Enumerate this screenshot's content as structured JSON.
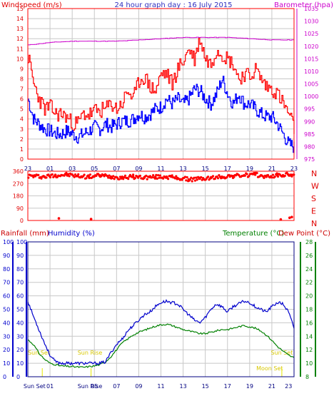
{
  "chart_data": [
    {
      "type": "line",
      "title": "24 hour graph day : 16 July 2015",
      "left_axis_label": "Windspeed (m/s)",
      "right_axis_label": "Barometer (hpa)",
      "x_ticks": [
        "23",
        "01",
        "03",
        "05",
        "07",
        "09",
        "11",
        "13",
        "15",
        "17",
        "19",
        "21",
        "23"
      ],
      "x_range_hours": [
        0,
        24
      ],
      "left_ylim": [
        0,
        15
      ],
      "left_yticks": [
        0,
        1,
        2,
        3,
        4,
        5,
        6,
        7,
        8,
        9,
        10,
        11,
        12,
        13,
        14,
        15
      ],
      "right_ylim": [
        975,
        1035
      ],
      "right_yticks": [
        975,
        980,
        985,
        990,
        995,
        1000,
        1005,
        1010,
        1015,
        1020,
        1025,
        1030,
        1035
      ],
      "grid": true,
      "colors": {
        "gust": "#ff0000",
        "average": "#0000ff",
        "barometer": "#cc00cc",
        "frame": "#ff0000",
        "grid": "#c8c8c8"
      },
      "series": [
        {
          "role": "gust",
          "axis": "left",
          "x": [
            0,
            0.5,
            1,
            1.5,
            2,
            2.5,
            3,
            3.5,
            4,
            4.5,
            5,
            5.5,
            6,
            6.5,
            7,
            7.5,
            8,
            8.5,
            9,
            9.5,
            10,
            10.5,
            11,
            11.5,
            12,
            12.5,
            13,
            13.5,
            14,
            14.5,
            15,
            15.5,
            16,
            16.5,
            17,
            17.5,
            18,
            18.5,
            19,
            19.5,
            20,
            20.5,
            21,
            21.5,
            22,
            22.5,
            23,
            23.5,
            24
          ],
          "values": [
            10.2,
            7.5,
            6,
            5,
            5.2,
            4.5,
            4.5,
            4.2,
            3.5,
            3.6,
            4.5,
            4.4,
            4.8,
            4.8,
            5,
            5.5,
            5,
            5.6,
            6.8,
            6,
            7.8,
            8.2,
            7.2,
            6.8,
            8.5,
            8.5,
            7.5,
            9,
            9.8,
            11,
            10,
            12,
            10,
            9.5,
            11,
            10.5,
            10,
            9.5,
            8,
            8.5,
            8.2,
            9,
            8,
            7.2,
            7,
            6.5,
            5.5,
            4.5,
            3
          ]
        },
        {
          "role": "average",
          "axis": "left",
          "x": [
            0,
            0.5,
            1,
            1.5,
            2,
            2.5,
            3,
            3.5,
            4,
            4.5,
            5,
            5.5,
            6,
            6.5,
            7,
            7.5,
            8,
            8.5,
            9,
            9.5,
            10,
            10.5,
            11,
            11.5,
            12,
            12.5,
            13,
            13.5,
            14,
            14.5,
            15,
            15.5,
            16,
            16.5,
            17,
            17.5,
            18,
            18.5,
            19,
            19.5,
            20,
            20.5,
            21,
            21.5,
            22,
            22.5,
            23,
            23.5,
            24
          ],
          "values": [
            6,
            4,
            3.5,
            3,
            2.8,
            2.5,
            2.5,
            2.8,
            2.5,
            2.2,
            2.5,
            2.8,
            3.2,
            3,
            3.5,
            3.2,
            3.5,
            3.8,
            3.8,
            4,
            4.5,
            4.2,
            4.5,
            5,
            5.2,
            6,
            5.5,
            6,
            5.5,
            6,
            7,
            6.8,
            6,
            5.5,
            6.5,
            8,
            6.5,
            5.5,
            6.5,
            5.5,
            5.5,
            5,
            4.5,
            4.2,
            4.2,
            3.5,
            2.5,
            1.5,
            1.2
          ]
        },
        {
          "role": "barometer",
          "axis": "right",
          "x": [
            0,
            2,
            4,
            6,
            8,
            10,
            12,
            14,
            16,
            18,
            20,
            22,
            24
          ],
          "values": [
            1020.5,
            1021.5,
            1022,
            1022,
            1022,
            1022.5,
            1023,
            1023.5,
            1023.5,
            1023.5,
            1023,
            1022.5,
            1022.5
          ]
        }
      ]
    },
    {
      "type": "scatter",
      "title": "",
      "x_range_hours": [
        0,
        24
      ],
      "ylim": [
        0,
        360
      ],
      "yticks": [
        0,
        90,
        180,
        270,
        360
      ],
      "right_labels": [
        "N",
        "W",
        "S",
        "E",
        "N"
      ],
      "grid": true,
      "series": [
        {
          "role": "wind direction",
          "x": [
            0.5,
            1.5,
            2.5,
            3.5,
            4.5,
            5.5,
            6.5,
            7.5,
            8.5,
            9.5,
            10.5,
            11.5,
            12.5,
            13.5,
            14.5,
            15.5,
            16.5,
            17.5,
            18.5,
            19.5,
            20.5,
            21.5,
            22.5,
            23.5,
            2.8,
            5.7,
            22.8,
            23.6,
            23.8
          ],
          "values": [
            325,
            320,
            330,
            335,
            325,
            320,
            330,
            320,
            315,
            320,
            315,
            318,
            320,
            310,
            300,
            305,
            310,
            320,
            325,
            330,
            335,
            320,
            330,
            335,
            15,
            10,
            8,
            20,
            25
          ]
        }
      ]
    },
    {
      "type": "line",
      "title": "",
      "left_axis_labels": [
        "Rainfall (mm)",
        "Humidity (%)"
      ],
      "right_axis_labels": [
        "Temperature (°C)",
        "Dew Point (°C)"
      ],
      "x_ticks": [
        "23",
        "01",
        "03",
        "05",
        "07",
        "09",
        "11",
        "13",
        "15",
        "17",
        "19",
        "21",
        "23"
      ],
      "x_range_hours": [
        0,
        24
      ],
      "left_ylim": [
        0,
        100
      ],
      "left_yticks": [
        0,
        10,
        20,
        30,
        40,
        50,
        60,
        70,
        80,
        90,
        100
      ],
      "right_ylim": [
        8,
        28
      ],
      "right_yticks": [
        8,
        10,
        12,
        14,
        16,
        18,
        20,
        22,
        24,
        26,
        28
      ],
      "grid": true,
      "colors": {
        "humidity": "#0000cc",
        "temperature": "#008000",
        "rainfall": "#ff0000",
        "sun": "#e6e600"
      },
      "annotations": [
        {
          "text": "Sun Set",
          "x_hour": 1.0
        },
        {
          "text": "Sun Rise",
          "x_hour": 5.6
        },
        {
          "text": "Sun Set",
          "x_hour": 22.9
        },
        {
          "text": "Moon Set",
          "x_hour": 21.8
        }
      ],
      "bottom_event_labels": [
        "Sun Set",
        "Sun Rise"
      ],
      "series": [
        {
          "role": "humidity",
          "axis": "left",
          "x": [
            0,
            0.5,
            1,
            1.5,
            2,
            2.5,
            3,
            4,
            5,
            5.5,
            6,
            6.5,
            7,
            7.5,
            8,
            8.5,
            9,
            9.5,
            10,
            10.5,
            11,
            11.5,
            12,
            12.5,
            13,
            13.5,
            14,
            14.5,
            15,
            15.5,
            16,
            16.5,
            17,
            17.5,
            18,
            18.5,
            19,
            19.5,
            20,
            20.5,
            21,
            21.5,
            22,
            22.5,
            23,
            23.5,
            24
          ],
          "values": [
            56,
            45,
            35,
            25,
            16,
            11,
            10,
            10,
            10,
            10,
            10,
            10,
            11,
            18,
            24,
            28,
            34,
            38,
            42,
            46,
            48,
            52,
            55,
            56,
            55,
            54,
            50,
            46,
            42,
            40,
            44,
            50,
            54,
            52,
            48,
            52,
            54,
            56,
            55,
            52,
            50,
            48,
            52,
            55,
            54,
            48,
            36
          ]
        },
        {
          "role": "temperature",
          "axis": "right",
          "x": [
            0,
            0.5,
            1,
            1.5,
            2,
            2.5,
            3,
            4,
            5,
            5.5,
            6,
            6.5,
            7,
            7.5,
            8,
            8.5,
            9,
            9.5,
            10,
            10.5,
            11,
            11.5,
            12,
            12.5,
            13,
            13.5,
            14,
            14.5,
            15,
            15.5,
            16,
            16.5,
            17,
            17.5,
            18,
            18.5,
            19,
            19.5,
            20,
            20.5,
            21,
            21.5,
            22,
            22.5,
            23,
            23.5,
            24
          ],
          "values": [
            13.5,
            12.8,
            11.5,
            10.6,
            10,
            9.8,
            9.6,
            9.5,
            9.4,
            9.5,
            9.6,
            9.8,
            10.2,
            11,
            12,
            13,
            13.6,
            14.2,
            14.6,
            14.9,
            15.2,
            15.5,
            15.7,
            15.8,
            15.6,
            15.3,
            15,
            14.8,
            14.6,
            14.4,
            14.4,
            14.6,
            14.8,
            15,
            15,
            15.2,
            15.4,
            15.6,
            15.4,
            15.2,
            14.8,
            14.2,
            13.4,
            12.5,
            11.8,
            11.2,
            10.8
          ]
        },
        {
          "role": "rainfall",
          "axis": "left",
          "x": [
            0,
            24
          ],
          "values": [
            0,
            0
          ]
        }
      ]
    }
  ]
}
